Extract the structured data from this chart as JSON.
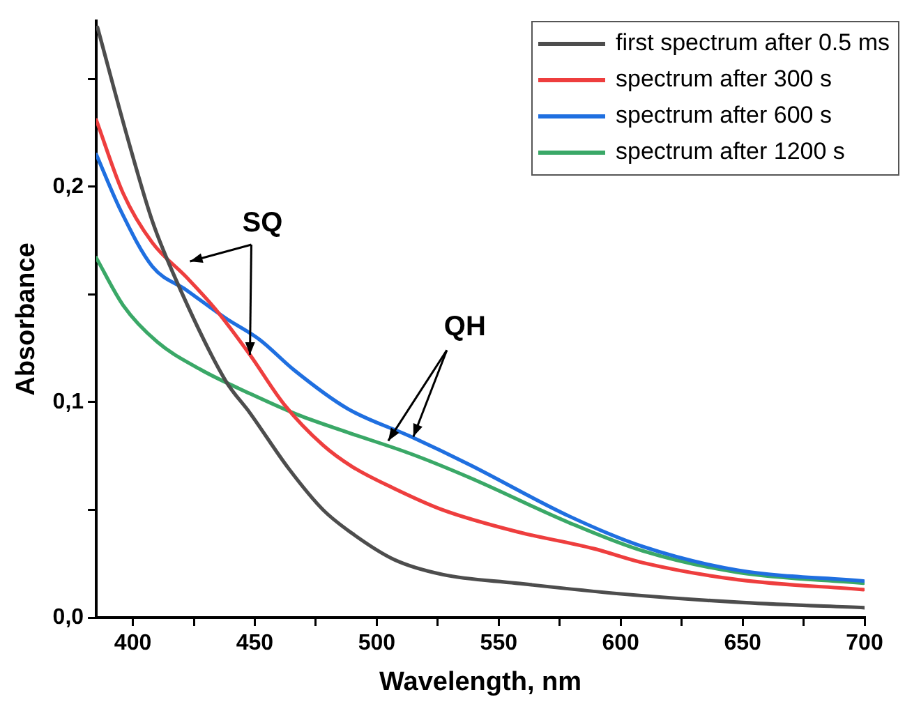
{
  "chart_data": {
    "type": "line",
    "xlabel": "Wavelength, nm",
    "ylabel": "Absorbance",
    "xlim": [
      385,
      700
    ],
    "ylim": [
      0,
      0.277
    ],
    "xticks": [
      400,
      {
        "value": 425,
        "label": null
      },
      450,
      {
        "value": 475,
        "label": null
      },
      500,
      {
        "value": 525,
        "label": null
      },
      550,
      {
        "value": 575,
        "label": null
      },
      600,
      {
        "value": 625,
        "label": null
      },
      650,
      {
        "value": 675,
        "label": null
      },
      700
    ],
    "yticks": [
      {
        "value": 0,
        "label": "0,0"
      },
      {
        "value": 0.05,
        "label": null
      },
      {
        "value": 0.1,
        "label": "0,1"
      },
      {
        "value": 0.15,
        "label": null
      },
      {
        "value": 0.2,
        "label": "0,2"
      },
      {
        "value": 0.25,
        "label": null
      }
    ],
    "grid": false,
    "legend": "top right",
    "marker": "none",
    "line_style": "solid",
    "annotations": [
      {
        "text": "SQ",
        "x": 448,
        "y": 0.122
      },
      {
        "text": "QH",
        "x": 515,
        "y": 0.084
      }
    ],
    "series": [
      {
        "name": "first spectrum after 0.5 ms",
        "color": "#4d4d4d",
        "x": [
          385.5,
          398,
          408,
          418,
          438,
          448,
          464,
          478,
          490,
          507,
          527,
          557,
          600,
          650,
          700
        ],
        "values": [
          0.274,
          0.222,
          0.184,
          0.156,
          0.11,
          0.095,
          0.069,
          0.05,
          0.039,
          0.027,
          0.02,
          0.016,
          0.011,
          0.007,
          0.0046
        ]
      },
      {
        "name": "spectrum after 300 s",
        "color": "#ee3e3e",
        "x": [
          385,
          396,
          408,
          422,
          434,
          448,
          462,
          478,
          490,
          507,
          527,
          557,
          589,
          609,
          648,
          699.5
        ],
        "values": [
          0.231,
          0.197,
          0.174,
          0.158,
          0.143,
          0.122,
          0.099,
          0.08,
          0.07,
          0.06,
          0.05,
          0.04,
          0.032,
          0.0255,
          0.0176,
          0.013
        ]
      },
      {
        "name": "spectrum after 600 s",
        "color": "#1f6fe0",
        "x": [
          385,
          395,
          408,
          422,
          438,
          452,
          466,
          488,
          514,
          538,
          579,
          609,
          648,
          699.5
        ],
        "values": [
          0.215,
          0.189,
          0.163,
          0.152,
          0.139,
          0.129,
          0.115,
          0.097,
          0.084,
          0.071,
          0.047,
          0.033,
          0.022,
          0.017
        ]
      },
      {
        "name": "spectrum after 1200 s",
        "color": "#3aa867",
        "x": [
          385,
          396,
          410,
          428,
          448,
          468,
          488,
          514,
          538,
          579,
          609,
          648,
          699.5
        ],
        "values": [
          0.167,
          0.145,
          0.128,
          0.115,
          0.104,
          0.094,
          0.086,
          0.076,
          0.065,
          0.044,
          0.031,
          0.021,
          0.016
        ]
      }
    ]
  }
}
